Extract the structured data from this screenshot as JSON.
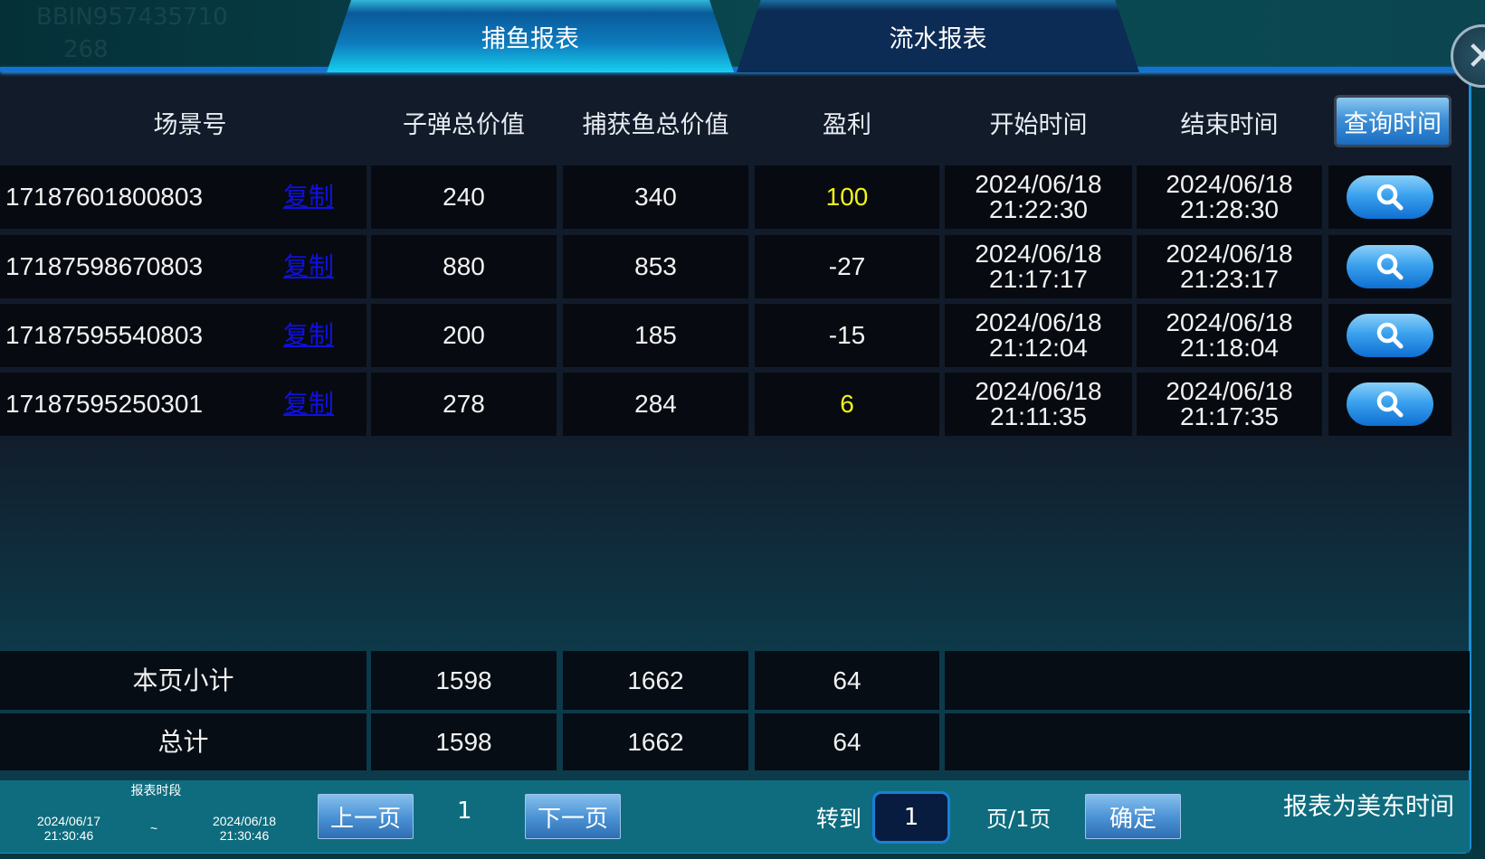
{
  "background": {
    "account": "BBIN957435710",
    "balance": "268"
  },
  "tabs": [
    {
      "label": "捕鱼报表",
      "active": true
    },
    {
      "label": "流水报表",
      "active": false
    }
  ],
  "table": {
    "headers": [
      "场景号",
      "子弹总价值",
      "捕获鱼总价值",
      "盈利",
      "开始时间",
      "结束时间"
    ],
    "query_button": "查询时间",
    "copy_label": "复制",
    "rows": [
      {
        "id": "17187601800803",
        "bullet": "240",
        "catch": "340",
        "profit": "100",
        "start_date": "2024/06/18",
        "start_time": "21:22:30",
        "end_date": "2024/06/18",
        "end_time": "21:28:30"
      },
      {
        "id": "17187598670803",
        "bullet": "880",
        "catch": "853",
        "profit": "-27",
        "start_date": "2024/06/18",
        "start_time": "21:17:17",
        "end_date": "2024/06/18",
        "end_time": "21:23:17"
      },
      {
        "id": "17187595540803",
        "bullet": "200",
        "catch": "185",
        "profit": "-15",
        "start_date": "2024/06/18",
        "start_time": "21:12:04",
        "end_date": "2024/06/18",
        "end_time": "21:18:04"
      },
      {
        "id": "17187595250301",
        "bullet": "278",
        "catch": "284",
        "profit": "6",
        "start_date": "2024/06/18",
        "start_time": "21:11:35",
        "end_date": "2024/06/18",
        "end_time": "21:17:35"
      }
    ],
    "subtotal": {
      "label": "本页小计",
      "bullet": "1598",
      "catch": "1662",
      "profit": "64"
    },
    "total": {
      "label": "总计",
      "bullet": "1598",
      "catch": "1662",
      "profit": "64"
    }
  },
  "footer": {
    "period_label": "报表时段",
    "from_date": "2024/06/17",
    "from_time": "21:30:46",
    "separator": "~",
    "to_date": "2024/06/18",
    "to_time": "21:30:46",
    "prev": "上一页",
    "current_page": "1",
    "next": "下一页",
    "goto_label": "转到",
    "goto_value": "1",
    "page_of": "页/1页",
    "confirm": "确定",
    "timezone_note": "报表为美东时间"
  },
  "colors": {
    "positive_profit": "#f2f21a",
    "copy_link": "#1010e0",
    "accent": "#1273d6"
  }
}
